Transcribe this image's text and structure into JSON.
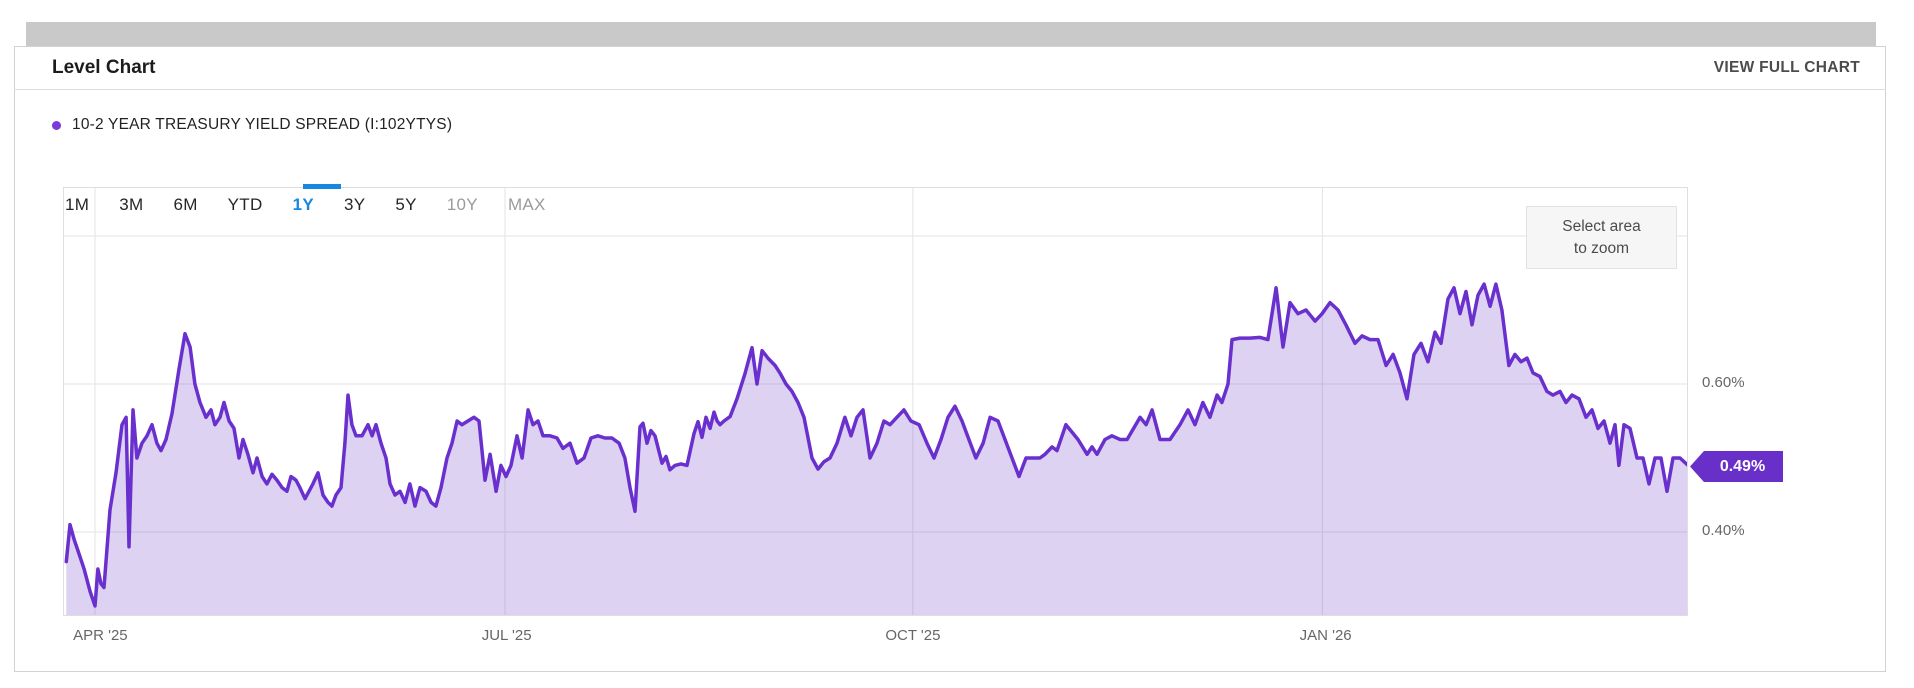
{
  "header": {
    "title": "Level Chart",
    "action_label": "VIEW FULL CHART"
  },
  "legend": {
    "series_label": "10-2 YEAR TREASURY YIELD SPREAD (I:102YTYS)"
  },
  "range_tabs": {
    "items": [
      {
        "label": "1M",
        "state": "default"
      },
      {
        "label": "3M",
        "state": "default"
      },
      {
        "label": "6M",
        "state": "default"
      },
      {
        "label": "YTD",
        "state": "default"
      },
      {
        "label": "1Y",
        "state": "active"
      },
      {
        "label": "3Y",
        "state": "default"
      },
      {
        "label": "5Y",
        "state": "default"
      },
      {
        "label": "10Y",
        "state": "disabled"
      },
      {
        "label": "MAX",
        "state": "disabled"
      }
    ]
  },
  "zoom_hint": {
    "line1": "Select area",
    "line2": "to zoom"
  },
  "last_value_badge": {
    "text": "0.49%"
  },
  "colors": {
    "line": "#6930ce",
    "fill": "rgba(105,48,201,0.22)",
    "legend_dot": "#7a3bdb",
    "badge_bg": "#6930c9",
    "active_tab": "#1788e0",
    "gridline": "#e3e3e3",
    "plot_border": "#dedede"
  },
  "chart_data": {
    "type": "area",
    "title": "10-2 Year Treasury Yield Spread (I:102YTYS), 1Y range",
    "unit": "%",
    "last_value": 0.49,
    "ylim": [
      0.2865,
      0.866
    ],
    "grid": true,
    "y_axis_labels": [
      {
        "text": "0.60%",
        "value": 0.6
      },
      {
        "text": "0.40%",
        "value": 0.4
      }
    ],
    "y_gridline_values": [
      0.8,
      0.6,
      0.4
    ],
    "x_axis_labels": [
      {
        "text": "APR '25",
        "pos": 2.3
      },
      {
        "text": "JUL '25",
        "pos": 27.3
      },
      {
        "text": "OCT '25",
        "pos": 52.3
      },
      {
        "text": "JAN '26",
        "pos": 77.7
      }
    ],
    "x_gridline_pos": [
      1.97,
      27.2,
      52.3,
      77.5
    ],
    "points": [
      [
        0.2,
        0.36
      ],
      [
        0.43,
        0.41
      ],
      [
        0.68,
        0.39
      ],
      [
        0.92,
        0.375
      ],
      [
        1.3,
        0.35
      ],
      [
        1.66,
        0.32
      ],
      [
        1.97,
        0.3
      ],
      [
        2.15,
        0.35
      ],
      [
        2.34,
        0.33
      ],
      [
        2.52,
        0.325
      ],
      [
        2.89,
        0.43
      ],
      [
        3.26,
        0.48
      ],
      [
        3.63,
        0.545
      ],
      [
        3.88,
        0.555
      ],
      [
        4.06,
        0.38
      ],
      [
        4.31,
        0.565
      ],
      [
        4.55,
        0.5
      ],
      [
        4.86,
        0.52
      ],
      [
        5.17,
        0.53
      ],
      [
        5.48,
        0.545
      ],
      [
        5.78,
        0.52
      ],
      [
        6.03,
        0.51
      ],
      [
        6.34,
        0.525
      ],
      [
        6.71,
        0.56
      ],
      [
        7.14,
        0.62
      ],
      [
        7.51,
        0.668
      ],
      [
        7.82,
        0.65
      ],
      [
        8.12,
        0.6
      ],
      [
        8.43,
        0.575
      ],
      [
        8.8,
        0.555
      ],
      [
        9.11,
        0.565
      ],
      [
        9.35,
        0.545
      ],
      [
        9.66,
        0.555
      ],
      [
        9.91,
        0.575
      ],
      [
        10.22,
        0.55
      ],
      [
        10.52,
        0.54
      ],
      [
        10.83,
        0.5
      ],
      [
        11.08,
        0.525
      ],
      [
        11.38,
        0.505
      ],
      [
        11.69,
        0.48
      ],
      [
        11.94,
        0.5
      ],
      [
        12.25,
        0.475
      ],
      [
        12.55,
        0.465
      ],
      [
        12.86,
        0.478
      ],
      [
        13.17,
        0.47
      ],
      [
        13.48,
        0.46
      ],
      [
        13.78,
        0.455
      ],
      [
        14.03,
        0.475
      ],
      [
        14.34,
        0.47
      ],
      [
        14.58,
        0.46
      ],
      [
        14.89,
        0.445
      ],
      [
        15.14,
        0.455
      ],
      [
        15.38,
        0.465
      ],
      [
        15.69,
        0.48
      ],
      [
        16.0,
        0.45
      ],
      [
        16.31,
        0.44
      ],
      [
        16.55,
        0.435
      ],
      [
        16.8,
        0.45
      ],
      [
        17.11,
        0.46
      ],
      [
        17.35,
        0.52
      ],
      [
        17.54,
        0.585
      ],
      [
        17.78,
        0.545
      ],
      [
        18.03,
        0.53
      ],
      [
        18.4,
        0.53
      ],
      [
        18.77,
        0.545
      ],
      [
        19.02,
        0.53
      ],
      [
        19.26,
        0.545
      ],
      [
        19.57,
        0.52
      ],
      [
        19.88,
        0.5
      ],
      [
        20.12,
        0.465
      ],
      [
        20.43,
        0.45
      ],
      [
        20.74,
        0.455
      ],
      [
        21.05,
        0.44
      ],
      [
        21.35,
        0.465
      ],
      [
        21.66,
        0.435
      ],
      [
        21.97,
        0.46
      ],
      [
        22.34,
        0.455
      ],
      [
        22.65,
        0.44
      ],
      [
        22.95,
        0.435
      ],
      [
        23.26,
        0.46
      ],
      [
        23.63,
        0.5
      ],
      [
        23.94,
        0.52
      ],
      [
        24.25,
        0.55
      ],
      [
        24.55,
        0.545
      ],
      [
        24.92,
        0.55
      ],
      [
        25.29,
        0.555
      ],
      [
        25.6,
        0.55
      ],
      [
        25.97,
        0.47
      ],
      [
        26.28,
        0.505
      ],
      [
        26.65,
        0.455
      ],
      [
        26.95,
        0.49
      ],
      [
        27.26,
        0.475
      ],
      [
        27.57,
        0.49
      ],
      [
        27.94,
        0.53
      ],
      [
        28.25,
        0.5
      ],
      [
        28.62,
        0.565
      ],
      [
        28.92,
        0.545
      ],
      [
        29.23,
        0.55
      ],
      [
        29.54,
        0.53
      ],
      [
        29.97,
        0.53
      ],
      [
        30.4,
        0.527
      ],
      [
        30.77,
        0.513
      ],
      [
        31.2,
        0.52
      ],
      [
        31.63,
        0.493
      ],
      [
        32.06,
        0.5
      ],
      [
        32.49,
        0.527
      ],
      [
        32.92,
        0.53
      ],
      [
        33.35,
        0.527
      ],
      [
        33.78,
        0.527
      ],
      [
        34.22,
        0.52
      ],
      [
        34.58,
        0.5
      ],
      [
        34.89,
        0.46
      ],
      [
        35.2,
        0.428
      ],
      [
        35.51,
        0.542
      ],
      [
        35.69,
        0.547
      ],
      [
        35.94,
        0.52
      ],
      [
        36.18,
        0.537
      ],
      [
        36.43,
        0.53
      ],
      [
        36.86,
        0.493
      ],
      [
        37.11,
        0.502
      ],
      [
        37.35,
        0.484
      ],
      [
        37.66,
        0.49
      ],
      [
        38.03,
        0.492
      ],
      [
        38.4,
        0.49
      ],
      [
        38.83,
        0.533
      ],
      [
        39.08,
        0.549
      ],
      [
        39.32,
        0.528
      ],
      [
        39.57,
        0.555
      ],
      [
        39.82,
        0.54
      ],
      [
        40.06,
        0.562
      ],
      [
        40.25,
        0.55
      ],
      [
        40.43,
        0.545
      ],
      [
        40.68,
        0.55
      ],
      [
        41.05,
        0.556
      ],
      [
        41.48,
        0.58
      ],
      [
        41.97,
        0.614
      ],
      [
        42.4,
        0.649
      ],
      [
        42.71,
        0.6
      ],
      [
        43.02,
        0.645
      ],
      [
        43.38,
        0.635
      ],
      [
        43.82,
        0.625
      ],
      [
        44.12,
        0.615
      ],
      [
        44.49,
        0.6
      ],
      [
        44.86,
        0.59
      ],
      [
        45.23,
        0.575
      ],
      [
        45.6,
        0.555
      ],
      [
        46.09,
        0.5
      ],
      [
        46.46,
        0.485
      ],
      [
        46.83,
        0.495
      ],
      [
        47.2,
        0.5
      ],
      [
        47.63,
        0.52
      ],
      [
        48.12,
        0.555
      ],
      [
        48.49,
        0.53
      ],
      [
        48.86,
        0.555
      ],
      [
        49.23,
        0.565
      ],
      [
        49.66,
        0.5
      ],
      [
        50.09,
        0.52
      ],
      [
        50.52,
        0.55
      ],
      [
        50.89,
        0.545
      ],
      [
        51.32,
        0.555
      ],
      [
        51.75,
        0.565
      ],
      [
        52.18,
        0.55
      ],
      [
        52.68,
        0.545
      ],
      [
        53.17,
        0.52
      ],
      [
        53.6,
        0.5
      ],
      [
        54.03,
        0.525
      ],
      [
        54.46,
        0.555
      ],
      [
        54.89,
        0.57
      ],
      [
        55.32,
        0.55
      ],
      [
        55.75,
        0.525
      ],
      [
        56.18,
        0.5
      ],
      [
        56.62,
        0.52
      ],
      [
        57.05,
        0.555
      ],
      [
        57.54,
        0.55
      ],
      [
        57.97,
        0.525
      ],
      [
        58.4,
        0.5
      ],
      [
        58.83,
        0.475
      ],
      [
        59.26,
        0.5
      ],
      [
        59.69,
        0.5
      ],
      [
        60.12,
        0.5
      ],
      [
        60.43,
        0.505
      ],
      [
        60.86,
        0.515
      ],
      [
        61.17,
        0.51
      ],
      [
        61.72,
        0.545
      ],
      [
        62.09,
        0.535
      ],
      [
        62.46,
        0.525
      ],
      [
        63.02,
        0.505
      ],
      [
        63.32,
        0.515
      ],
      [
        63.63,
        0.505
      ],
      [
        64.12,
        0.525
      ],
      [
        64.55,
        0.53
      ],
      [
        65.05,
        0.525
      ],
      [
        65.48,
        0.525
      ],
      [
        66.28,
        0.555
      ],
      [
        66.65,
        0.545
      ],
      [
        67.02,
        0.565
      ],
      [
        67.51,
        0.525
      ],
      [
        68.12,
        0.525
      ],
      [
        68.74,
        0.545
      ],
      [
        69.23,
        0.565
      ],
      [
        69.66,
        0.545
      ],
      [
        70.15,
        0.575
      ],
      [
        70.58,
        0.555
      ],
      [
        71.02,
        0.585
      ],
      [
        71.32,
        0.575
      ],
      [
        71.69,
        0.6
      ],
      [
        71.94,
        0.66
      ],
      [
        72.43,
        0.662
      ],
      [
        73.05,
        0.662
      ],
      [
        73.66,
        0.663
      ],
      [
        74.15,
        0.66
      ],
      [
        74.65,
        0.73
      ],
      [
        75.08,
        0.65
      ],
      [
        75.51,
        0.71
      ],
      [
        76.0,
        0.695
      ],
      [
        76.49,
        0.7
      ],
      [
        77.05,
        0.685
      ],
      [
        77.48,
        0.695
      ],
      [
        77.97,
        0.71
      ],
      [
        78.46,
        0.7
      ],
      [
        78.95,
        0.68
      ],
      [
        79.51,
        0.655
      ],
      [
        79.94,
        0.665
      ],
      [
        80.43,
        0.66
      ],
      [
        80.92,
        0.66
      ],
      [
        81.42,
        0.625
      ],
      [
        81.85,
        0.64
      ],
      [
        82.28,
        0.615
      ],
      [
        82.71,
        0.58
      ],
      [
        83.14,
        0.64
      ],
      [
        83.57,
        0.655
      ],
      [
        84.0,
        0.63
      ],
      [
        84.43,
        0.67
      ],
      [
        84.8,
        0.655
      ],
      [
        85.23,
        0.715
      ],
      [
        85.6,
        0.73
      ],
      [
        85.97,
        0.695
      ],
      [
        86.34,
        0.725
      ],
      [
        86.71,
        0.68
      ],
      [
        87.08,
        0.72
      ],
      [
        87.45,
        0.735
      ],
      [
        87.82,
        0.705
      ],
      [
        88.18,
        0.735
      ],
      [
        88.55,
        0.7
      ],
      [
        88.98,
        0.625
      ],
      [
        89.35,
        0.64
      ],
      [
        89.72,
        0.63
      ],
      [
        90.09,
        0.635
      ],
      [
        90.46,
        0.615
      ],
      [
        90.89,
        0.61
      ],
      [
        91.32,
        0.59
      ],
      [
        91.69,
        0.585
      ],
      [
        92.12,
        0.59
      ],
      [
        92.49,
        0.575
      ],
      [
        92.86,
        0.585
      ],
      [
        93.29,
        0.58
      ],
      [
        93.72,
        0.555
      ],
      [
        94.09,
        0.565
      ],
      [
        94.46,
        0.54
      ],
      [
        94.83,
        0.55
      ],
      [
        95.2,
        0.52
      ],
      [
        95.51,
        0.545
      ],
      [
        95.75,
        0.49
      ],
      [
        96.06,
        0.545
      ],
      [
        96.43,
        0.54
      ],
      [
        96.86,
        0.5
      ],
      [
        97.23,
        0.5
      ],
      [
        97.6,
        0.465
      ],
      [
        97.97,
        0.5
      ],
      [
        98.34,
        0.5
      ],
      [
        98.71,
        0.455
      ],
      [
        99.08,
        0.5
      ],
      [
        99.51,
        0.5
      ],
      [
        100,
        0.49
      ]
    ]
  }
}
